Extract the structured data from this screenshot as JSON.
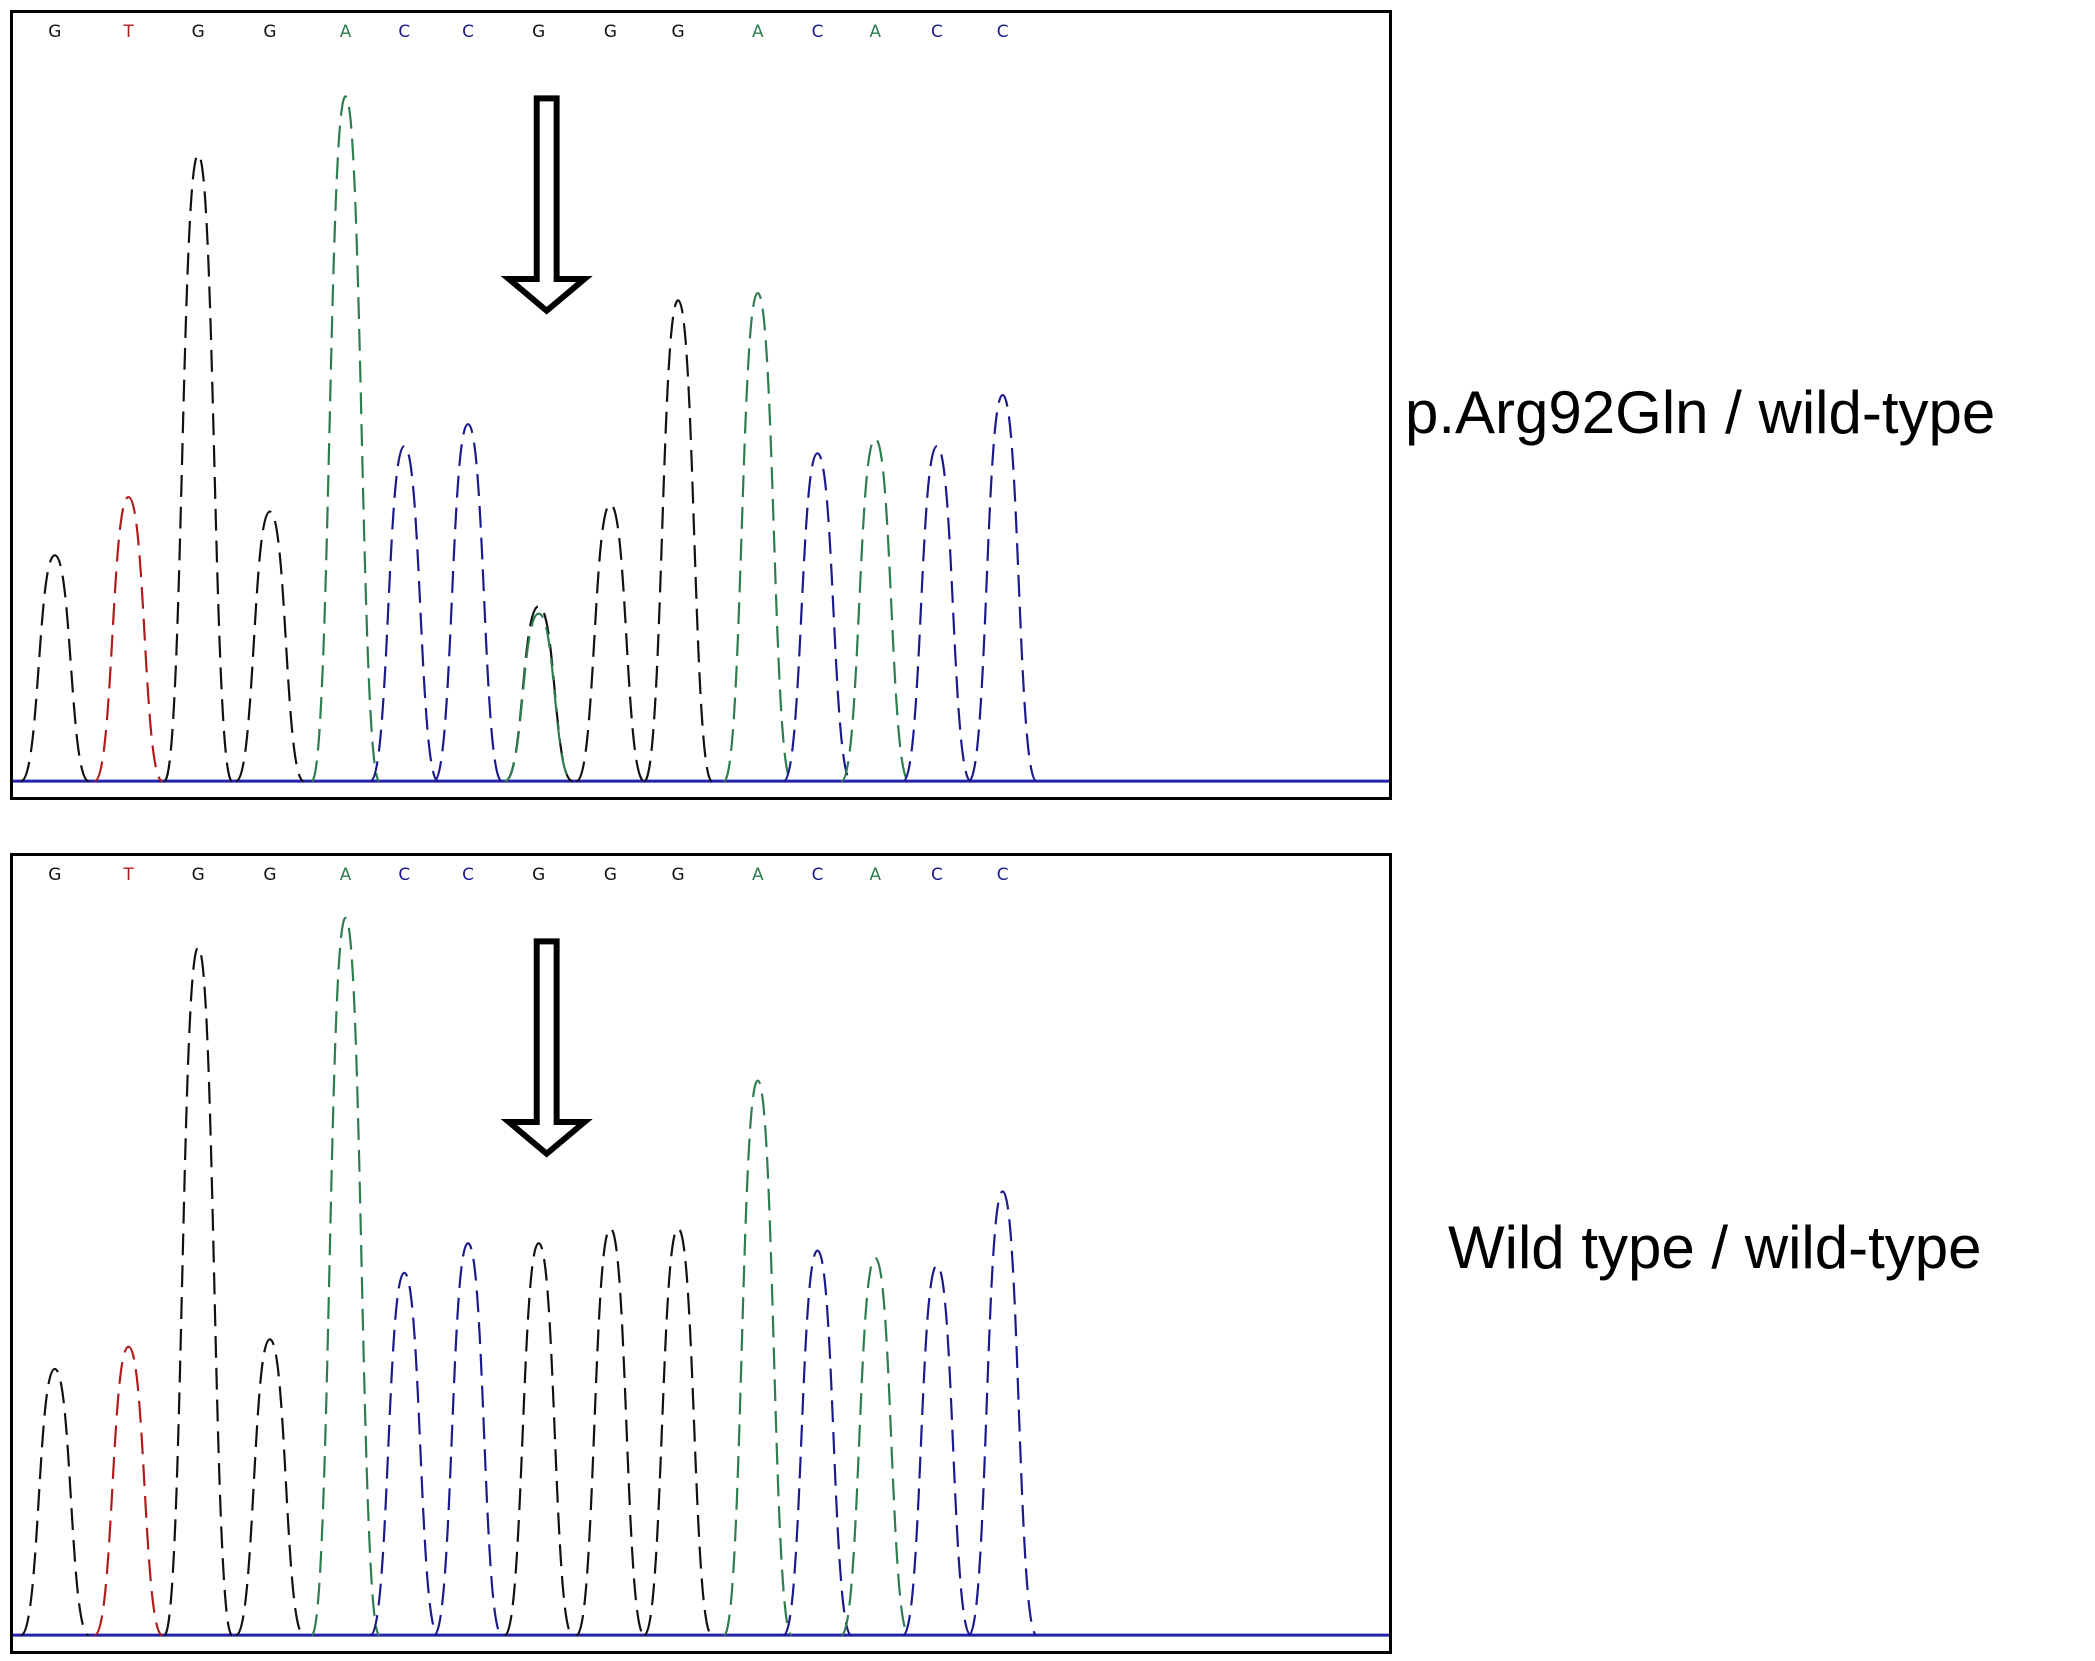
{
  "colors": {
    "A": "#2e7d4f",
    "C": "#1a1a8c",
    "G": "#111111",
    "T": "#b01c1c",
    "baseline": "#2222aa"
  },
  "chart_data": [
    {
      "type": "line",
      "genotype_label": "p.Arg92Gln / wild-type",
      "base_calls": [
        "G",
        "T",
        "G",
        "G",
        "A",
        "C",
        "C",
        "G",
        "G",
        "G",
        "A",
        "C",
        "A",
        "C",
        "C"
      ],
      "peaks": [
        {
          "base": "G",
          "x": 1,
          "height": 0.31
        },
        {
          "base": "T",
          "x": 2,
          "height": 0.39
        },
        {
          "base": "G",
          "x": 3,
          "height": 0.86
        },
        {
          "base": "G",
          "x": 4,
          "height": 0.37
        },
        {
          "base": "A",
          "x": 5,
          "height": 0.94
        },
        {
          "base": "C",
          "x": 6,
          "height": 0.46
        },
        {
          "base": "C",
          "x": 7,
          "height": 0.49
        },
        {
          "base": "G",
          "x": 8,
          "height": 0.24
        },
        {
          "base": "A",
          "x": 8,
          "height": 0.23
        },
        {
          "base": "G",
          "x": 9,
          "height": 0.38
        },
        {
          "base": "G",
          "x": 10,
          "height": 0.66
        },
        {
          "base": "A",
          "x": 11,
          "height": 0.67
        },
        {
          "base": "C",
          "x": 12,
          "height": 0.45
        },
        {
          "base": "A",
          "x": 13,
          "height": 0.47
        },
        {
          "base": "C",
          "x": 14,
          "height": 0.46
        },
        {
          "base": "C",
          "x": 15,
          "height": 0.53
        }
      ],
      "arrow_position": 8
    },
    {
      "type": "line",
      "genotype_label": "Wild type / wild-type",
      "base_calls": [
        "G",
        "T",
        "G",
        "G",
        "A",
        "C",
        "C",
        "G",
        "G",
        "G",
        "A",
        "C",
        "A",
        "C",
        "C"
      ],
      "peaks": [
        {
          "base": "G",
          "x": 1,
          "height": 0.36
        },
        {
          "base": "T",
          "x": 2,
          "height": 0.39
        },
        {
          "base": "G",
          "x": 3,
          "height": 0.93
        },
        {
          "base": "G",
          "x": 4,
          "height": 0.4
        },
        {
          "base": "A",
          "x": 5,
          "height": 0.97
        },
        {
          "base": "C",
          "x": 6,
          "height": 0.49
        },
        {
          "base": "C",
          "x": 7,
          "height": 0.53
        },
        {
          "base": "G",
          "x": 8,
          "height": 0.53
        },
        {
          "base": "G",
          "x": 9,
          "height": 0.55
        },
        {
          "base": "G",
          "x": 10,
          "height": 0.55
        },
        {
          "base": "A",
          "x": 11,
          "height": 0.75
        },
        {
          "base": "C",
          "x": 12,
          "height": 0.52
        },
        {
          "base": "A",
          "x": 13,
          "height": 0.51
        },
        {
          "base": "C",
          "x": 14,
          "height": 0.5
        },
        {
          "base": "C",
          "x": 15,
          "height": 0.6
        }
      ],
      "arrow_position": 8
    }
  ]
}
